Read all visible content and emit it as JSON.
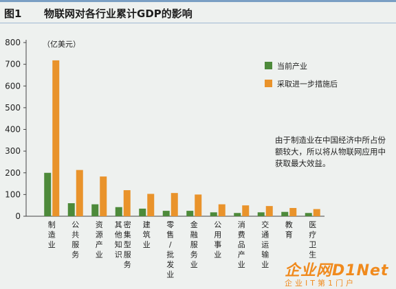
{
  "header": {
    "figure_label": "图1",
    "title": "物联网对各行业累计GDP的影响"
  },
  "chart_data": {
    "type": "bar",
    "unit_label": "（亿美元）",
    "ylim": [
      0,
      800
    ],
    "yticks": [
      0,
      100,
      200,
      300,
      400,
      500,
      600,
      700,
      800
    ],
    "grid": false,
    "legend_position": "top-right",
    "categories": [
      "制造业",
      "公共服务",
      "资源产业",
      "其他知识密集型服务",
      "建筑业",
      "零售/批发业",
      "金融服务业",
      "公用事业",
      "消费品产业",
      "交通运输业",
      "教育",
      "医疗卫生"
    ],
    "category_columns": [
      [
        "制造业"
      ],
      [
        "公共服务"
      ],
      [
        "资源产业"
      ],
      [
        "其他知识",
        "密集型服务"
      ],
      [
        "建筑业"
      ],
      [
        "零售/批发业"
      ],
      [
        "金融服务业"
      ],
      [
        "公用事业"
      ],
      [
        "消费品产业"
      ],
      [
        "交通运输业"
      ],
      [
        "教育"
      ],
      [
        "医疗卫生"
      ]
    ],
    "series": [
      {
        "name": "当前产业",
        "color": "#4d8a3a",
        "values": [
          200,
          60,
          55,
          42,
          35,
          25,
          25,
          18,
          15,
          18,
          20,
          15
        ]
      },
      {
        "name": "采取进一步措施后",
        "color": "#e9932b",
        "values": [
          718,
          213,
          183,
          120,
          103,
          107,
          100,
          55,
          50,
          47,
          38,
          33
        ]
      }
    ]
  },
  "annotation": {
    "text": "由于制造业在中国经济中所占份额较大，所以将从物联网应用中获取最大效益。"
  },
  "watermark": {
    "main": "企业网D1Net",
    "sub": "企业IT第1门户"
  }
}
